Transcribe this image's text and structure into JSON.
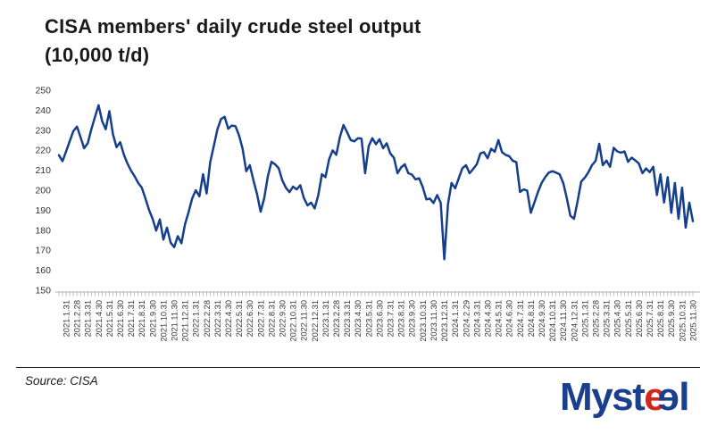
{
  "title": {
    "line1": "CISA members' daily crude steel output",
    "line2": "(10,000 t/d)"
  },
  "source": {
    "label": "Source: CISA"
  },
  "logo": {
    "name": "Mysteel",
    "part1": "Myst",
    "e1": "e",
    "e2": "e",
    "part2": "l",
    "blue": "#1B3F8F",
    "red": "#D6251F"
  },
  "colors": {
    "line": "#153F8C",
    "axis_text": "#333333",
    "tick": "#9a9a9a",
    "title_text": "#1a1a1a"
  },
  "chart_data": {
    "type": "line",
    "title": "CISA members' daily crude steel output (10,000 t/d)",
    "xlabel": "",
    "ylabel": "",
    "ylim": [
      150,
      250
    ],
    "ytick_step": 10,
    "grid": false,
    "legend": null,
    "series_name": "CISA members daily crude steel output (10,000 t/d)",
    "points_per_month": 3,
    "x_label_every": 3,
    "x_label_offset": 2,
    "x_labels": [
      "2021.1.31",
      "2021.2.28",
      "2021.3.31",
      "2021.4.30",
      "2021.5.31",
      "2021.6.30",
      "2021.7.31",
      "2021.8.31",
      "2021.9.30",
      "2021.10.31",
      "2021.11.30",
      "2021.12.31",
      "2022.1.31",
      "2022.2.28",
      "2022.3.31",
      "2022.4.30",
      "2022.5.31",
      "2022.6.30",
      "2022.7.31",
      "2022.8.31",
      "2022.9.30",
      "2022.10.31",
      "2022.11.30",
      "2022.12.31",
      "2023.1.31",
      "2023.2.28",
      "2023.3.31",
      "2023.4.30",
      "2023.5.31",
      "2023.6.30",
      "2023.7.31",
      "2023.8.31",
      "2023.9.30",
      "2023.10.31",
      "2023.11.30",
      "2023.12.31",
      "2024.1.31",
      "2024.2.29",
      "2024.3.31",
      "2024.4.30",
      "2024.5.31",
      "2024.6.30",
      "2024.7.31",
      "2024.8.31",
      "2024.9.30",
      "2024.10.31",
      "2024.11.30",
      "2024.12.31",
      "2025.1.31",
      "2025.2.28",
      "2025.3.31",
      "2025.4.30",
      "2025.5.31",
      "2025.6.30",
      "2025.7.31",
      "2025.8.31",
      "2025.9.30",
      "2025.10.31",
      "2025.11.30"
    ],
    "values": [
      217.5,
      214.5,
      219.5,
      224.5,
      229.5,
      231.8,
      226.5,
      221.0,
      223.5,
      230.5,
      236.5,
      242.5,
      234.5,
      230.5,
      239.5,
      228.0,
      221.5,
      224.0,
      218.0,
      213.5,
      209.8,
      207.0,
      203.6,
      201.3,
      196.0,
      190.2,
      185.7,
      179.8,
      185.4,
      175.3,
      181.3,
      173.8,
      171.5,
      177.0,
      173.5,
      183.0,
      189.0,
      196.0,
      200.0,
      196.9,
      208.0,
      198.4,
      214.0,
      222.2,
      230.4,
      235.6,
      236.7,
      230.7,
      232.3,
      232.0,
      227.4,
      220.7,
      209.5,
      212.5,
      205.0,
      198.0,
      189.3,
      196.0,
      207.0,
      214.2,
      213.0,
      211.0,
      205.0,
      201.3,
      199.0,
      201.8,
      200.4,
      202.5,
      196.1,
      192.4,
      193.8,
      190.9,
      197.6,
      208.0,
      206.5,
      215.5,
      219.9,
      217.7,
      226.6,
      232.6,
      229.0,
      225.1,
      224.4,
      226.0,
      225.8,
      208.5,
      222.0,
      226.0,
      223.0,
      225.5,
      221.0,
      223.5,
      218.4,
      216.2,
      208.5,
      211.4,
      213.0,
      208.5,
      207.8,
      205.4,
      206.0,
      201.6,
      195.4,
      195.8,
      193.6,
      197.6,
      193.6,
      165.5,
      193.0,
      203.6,
      201.0,
      206.0,
      211.0,
      212.5,
      208.5,
      210.6,
      213.0,
      218.4,
      219.0,
      216.0,
      220.7,
      219.2,
      225.1,
      219.0,
      217.7,
      217.0,
      214.7,
      214.0,
      199.1,
      200.4,
      199.8,
      188.7,
      193.9,
      199.1,
      203.6,
      206.5,
      208.8,
      209.5,
      208.8,
      208.0,
      203.6,
      196.0,
      187.2,
      185.7,
      194.6,
      204.3,
      206.3,
      209.0,
      212.5,
      214.7,
      223.2,
      212.5,
      214.8,
      211.7,
      221.2,
      219.4,
      218.8,
      219.4,
      214.2,
      216.3,
      214.9,
      213.3,
      208.5,
      210.9,
      209.0,
      211.7,
      197.6,
      208.0,
      193.9,
      206.5,
      188.7,
      203.6,
      185.7,
      201.3,
      181.3,
      193.8,
      184.5
    ]
  }
}
